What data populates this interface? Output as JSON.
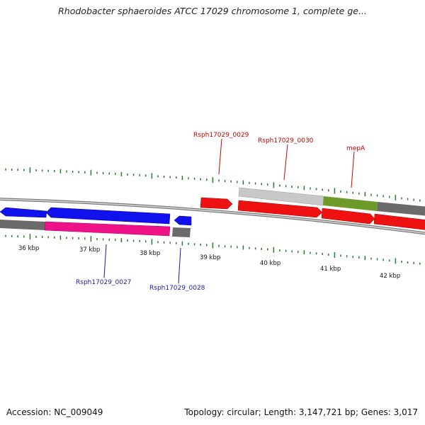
{
  "title": "Rhodobacter sphaeroides ATCC 17029 chromosome 1, complete ge...",
  "footer": {
    "accession": "Accession: NC_009049",
    "summary": "Topology: circular; Length: 3,147,721 bp; Genes: 3,017"
  },
  "colors": {
    "red": "#ee1111",
    "blue": "#1111ee",
    "magenta": "#ee1188",
    "grey_dark": "#6a6a6a",
    "grey_light": "#c8c8c8",
    "olive": "#6e9a2a",
    "tick_green": "#2a7a2a",
    "label_red": "#cc0000",
    "label_blue": "#1a1aaa"
  },
  "axis": {
    "unit": "kbp",
    "ticks": [
      "36 kbp",
      "37 kbp",
      "38 kbp",
      "39 kbp",
      "40 kbp",
      "41 kbp",
      "42 kbp"
    ]
  },
  "genes": {
    "forward": [
      {
        "label": "Rsph17029_0029",
        "label_color": "red"
      },
      {
        "label": "Rsph17029_0030",
        "label_color": "red"
      },
      {
        "label": "mepA",
        "label_color": "red"
      }
    ],
    "reverse": [
      {
        "label": "Rsph17029_0027",
        "label_color": "blue"
      },
      {
        "label": "Rsph17029_0028",
        "label_color": "blue"
      }
    ]
  }
}
